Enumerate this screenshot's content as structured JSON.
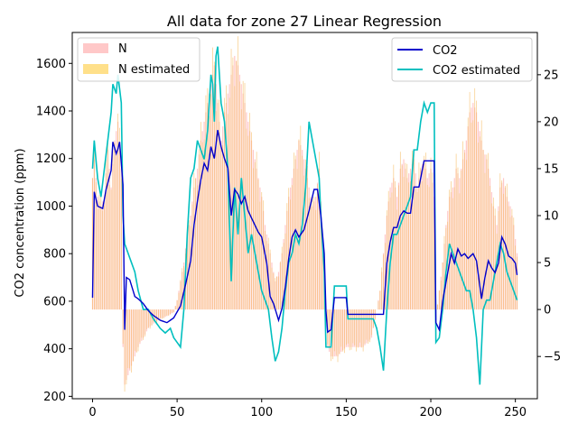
{
  "chart_data": {
    "type": "line",
    "title": "All data for zone 27 Linear Regression",
    "xlabel": "",
    "ylabel": "CO2 concentration (ppm)",
    "y2label": "",
    "xlim": [
      -12,
      263
    ],
    "ylim": [
      190,
      1730
    ],
    "y2lim": [
      -9.5,
      29.5
    ],
    "x_ticks": [
      0,
      50,
      100,
      150,
      200,
      250
    ],
    "y_ticks": [
      200,
      400,
      600,
      800,
      1000,
      1200,
      1400,
      1600
    ],
    "y2_ticks": [
      -5,
      0,
      5,
      10,
      15,
      20,
      25
    ],
    "grid": false,
    "legend_left": {
      "placement": "upper left",
      "entries": [
        {
          "label": "N",
          "color": "#ffc8c8"
        },
        {
          "label": "N estimated",
          "color": "#ffe08a"
        }
      ]
    },
    "legend_right": {
      "placement": "upper right",
      "entries": [
        {
          "label": "CO2",
          "color": "#0000cc"
        },
        {
          "label": "CO2 estimated",
          "color": "#00bfbf"
        }
      ]
    },
    "co2_keypoints": [
      [
        0,
        615
      ],
      [
        1,
        1060
      ],
      [
        3,
        1000
      ],
      [
        6,
        990
      ],
      [
        8,
        1070
      ],
      [
        11,
        1150
      ],
      [
        12,
        1270
      ],
      [
        14,
        1220
      ],
      [
        15,
        1240
      ],
      [
        16,
        1270
      ],
      [
        18,
        1090
      ],
      [
        19,
        480
      ],
      [
        20,
        700
      ],
      [
        22,
        690
      ],
      [
        25,
        620
      ],
      [
        27,
        610
      ],
      [
        30,
        590
      ],
      [
        33,
        560
      ],
      [
        36,
        540
      ],
      [
        40,
        520
      ],
      [
        44,
        510
      ],
      [
        48,
        530
      ],
      [
        52,
        580
      ],
      [
        55,
        670
      ],
      [
        58,
        770
      ],
      [
        60,
        920
      ],
      [
        62,
        1020
      ],
      [
        64,
        1110
      ],
      [
        66,
        1180
      ],
      [
        68,
        1150
      ],
      [
        70,
        1250
      ],
      [
        72,
        1200
      ],
      [
        74,
        1320
      ],
      [
        76,
        1250
      ],
      [
        78,
        1200
      ],
      [
        80,
        1160
      ],
      [
        82,
        960
      ],
      [
        84,
        1070
      ],
      [
        86,
        1050
      ],
      [
        88,
        1010
      ],
      [
        90,
        1040
      ],
      [
        92,
        980
      ],
      [
        94,
        950
      ],
      [
        96,
        920
      ],
      [
        98,
        890
      ],
      [
        100,
        870
      ],
      [
        103,
        760
      ],
      [
        105,
        620
      ],
      [
        107,
        590
      ],
      [
        110,
        520
      ],
      [
        112,
        570
      ],
      [
        114,
        660
      ],
      [
        116,
        780
      ],
      [
        118,
        870
      ],
      [
        120,
        900
      ],
      [
        122,
        870
      ],
      [
        125,
        900
      ],
      [
        128,
        980
      ],
      [
        131,
        1070
      ],
      [
        133,
        1070
      ],
      [
        135,
        960
      ],
      [
        137,
        800
      ],
      [
        138,
        560
      ],
      [
        139,
        470
      ],
      [
        141,
        480
      ],
      [
        143,
        615
      ],
      [
        150,
        615
      ],
      [
        151,
        545
      ],
      [
        155,
        545
      ],
      [
        160,
        545
      ],
      [
        165,
        545
      ],
      [
        170,
        545
      ],
      [
        172,
        545
      ],
      [
        174,
        760
      ],
      [
        176,
        850
      ],
      [
        178,
        910
      ],
      [
        180,
        910
      ],
      [
        182,
        960
      ],
      [
        184,
        980
      ],
      [
        186,
        970
      ],
      [
        188,
        970
      ],
      [
        190,
        1080
      ],
      [
        193,
        1080
      ],
      [
        196,
        1190
      ],
      [
        199,
        1190
      ],
      [
        202,
        1190
      ],
      [
        203,
        510
      ],
      [
        205,
        480
      ],
      [
        207,
        600
      ],
      [
        209,
        680
      ],
      [
        212,
        800
      ],
      [
        214,
        760
      ],
      [
        216,
        820
      ],
      [
        218,
        790
      ],
      [
        220,
        800
      ],
      [
        222,
        780
      ],
      [
        225,
        800
      ],
      [
        227,
        770
      ],
      [
        230,
        610
      ],
      [
        232,
        700
      ],
      [
        234,
        770
      ],
      [
        236,
        740
      ],
      [
        238,
        720
      ],
      [
        240,
        760
      ],
      [
        242,
        870
      ],
      [
        244,
        840
      ],
      [
        246,
        790
      ],
      [
        248,
        780
      ],
      [
        250,
        760
      ],
      [
        251,
        710
      ]
    ],
    "co2_estimated_keypoints": [
      [
        0,
        15
      ],
      [
        1,
        18
      ],
      [
        3,
        14
      ],
      [
        5,
        12
      ],
      [
        7,
        15
      ],
      [
        9,
        18
      ],
      [
        11,
        21
      ],
      [
        12,
        24
      ],
      [
        14,
        23
      ],
      [
        15,
        25
      ],
      [
        17,
        22
      ],
      [
        18,
        10
      ],
      [
        19,
        7
      ],
      [
        21,
        6
      ],
      [
        23,
        5
      ],
      [
        25,
        4
      ],
      [
        27,
        2
      ],
      [
        30,
        0
      ],
      [
        33,
        0
      ],
      [
        36,
        -1
      ],
      [
        40,
        -2
      ],
      [
        43,
        -2.5
      ],
      [
        46,
        -2
      ],
      [
        48,
        -3
      ],
      [
        50,
        -3.5
      ],
      [
        52,
        -4
      ],
      [
        54,
        0
      ],
      [
        56,
        8
      ],
      [
        58,
        14
      ],
      [
        60,
        15
      ],
      [
        62,
        18
      ],
      [
        64,
        17
      ],
      [
        66,
        16
      ],
      [
        68,
        19
      ],
      [
        70,
        25
      ],
      [
        71,
        24
      ],
      [
        72,
        20
      ],
      [
        73,
        27
      ],
      [
        74,
        28
      ],
      [
        76,
        22
      ],
      [
        78,
        20
      ],
      [
        80,
        15
      ],
      [
        82,
        3
      ],
      [
        84,
        13
      ],
      [
        86,
        8
      ],
      [
        88,
        14
      ],
      [
        90,
        10
      ],
      [
        92,
        6
      ],
      [
        94,
        8
      ],
      [
        96,
        6
      ],
      [
        98,
        4
      ],
      [
        100,
        2
      ],
      [
        102,
        1
      ],
      [
        104,
        0
      ],
      [
        106,
        -3
      ],
      [
        108,
        -5.5
      ],
      [
        110,
        -4.5
      ],
      [
        112,
        -2
      ],
      [
        114,
        2
      ],
      [
        116,
        5
      ],
      [
        118,
        6
      ],
      [
        120,
        8
      ],
      [
        122,
        7
      ],
      [
        124,
        9
      ],
      [
        126,
        13
      ],
      [
        128,
        20
      ],
      [
        130,
        18
      ],
      [
        132,
        16
      ],
      [
        134,
        14
      ],
      [
        135,
        10
      ],
      [
        137,
        4
      ],
      [
        138,
        -4
      ],
      [
        139,
        -4
      ],
      [
        141,
        -4
      ],
      [
        143,
        2.5
      ],
      [
        150,
        2.5
      ],
      [
        151,
        -1
      ],
      [
        160,
        -1
      ],
      [
        166,
        -1
      ],
      [
        168,
        -2
      ],
      [
        170,
        -4
      ],
      [
        172,
        -6.5
      ],
      [
        174,
        0
      ],
      [
        176,
        5
      ],
      [
        178,
        8
      ],
      [
        180,
        8
      ],
      [
        182,
        9
      ],
      [
        184,
        10
      ],
      [
        186,
        11
      ],
      [
        188,
        12
      ],
      [
        190,
        17
      ],
      [
        192,
        17
      ],
      [
        194,
        20
      ],
      [
        196,
        22
      ],
      [
        198,
        21
      ],
      [
        200,
        22
      ],
      [
        202,
        22
      ],
      [
        203,
        -3.5
      ],
      [
        205,
        -3
      ],
      [
        207,
        0
      ],
      [
        209,
        4
      ],
      [
        211,
        7
      ],
      [
        213,
        6
      ],
      [
        215,
        5
      ],
      [
        217,
        4
      ],
      [
        219,
        3
      ],
      [
        221,
        2
      ],
      [
        223,
        2
      ],
      [
        225,
        0
      ],
      [
        227,
        -3
      ],
      [
        229,
        -8
      ],
      [
        231,
        0
      ],
      [
        233,
        1
      ],
      [
        235,
        1
      ],
      [
        237,
        3
      ],
      [
        239,
        5
      ],
      [
        241,
        7
      ],
      [
        243,
        6
      ],
      [
        245,
        4
      ],
      [
        247,
        3
      ],
      [
        249,
        2
      ],
      [
        251,
        1
      ]
    ],
    "n_keypoints": [
      [
        0,
        14
      ],
      [
        1,
        16
      ],
      [
        3,
        12
      ],
      [
        5,
        11
      ],
      [
        7,
        12
      ],
      [
        9,
        17
      ],
      [
        11,
        13
      ],
      [
        13,
        18
      ],
      [
        15,
        20
      ],
      [
        17,
        15
      ],
      [
        18,
        -4
      ],
      [
        19,
        -8
      ],
      [
        21,
        -7
      ],
      [
        23,
        -6
      ],
      [
        25,
        -5
      ],
      [
        27,
        -4
      ],
      [
        30,
        -3
      ],
      [
        33,
        -2
      ],
      [
        36,
        -1.5
      ],
      [
        40,
        -1
      ],
      [
        43,
        -0.8
      ],
      [
        46,
        -0.5
      ],
      [
        48,
        -0.3
      ],
      [
        50,
        1
      ],
      [
        52,
        3
      ],
      [
        54,
        5
      ],
      [
        56,
        8
      ],
      [
        58,
        10
      ],
      [
        60,
        13
      ],
      [
        62,
        15
      ],
      [
        64,
        18
      ],
      [
        66,
        20
      ],
      [
        68,
        22
      ],
      [
        70,
        24
      ],
      [
        72,
        26
      ],
      [
        74,
        22
      ],
      [
        76,
        18
      ],
      [
        78,
        21
      ],
      [
        80,
        23
      ],
      [
        82,
        25
      ],
      [
        84,
        27
      ],
      [
        86,
        26
      ],
      [
        88,
        24
      ],
      [
        90,
        22
      ],
      [
        92,
        20
      ],
      [
        94,
        18
      ],
      [
        96,
        16
      ],
      [
        98,
        14
      ],
      [
        100,
        12
      ],
      [
        102,
        9
      ],
      [
        104,
        7
      ],
      [
        106,
        5
      ],
      [
        108,
        3
      ],
      [
        110,
        4
      ],
      [
        112,
        6
      ],
      [
        114,
        9
      ],
      [
        116,
        12
      ],
      [
        118,
        14
      ],
      [
        120,
        16
      ],
      [
        122,
        18
      ],
      [
        124,
        17
      ],
      [
        126,
        15
      ],
      [
        128,
        13
      ],
      [
        130,
        11
      ],
      [
        132,
        12
      ],
      [
        134,
        15
      ],
      [
        136,
        8
      ],
      [
        138,
        -1
      ],
      [
        139,
        -4
      ],
      [
        141,
        -5
      ],
      [
        143,
        -5
      ],
      [
        145,
        -5
      ],
      [
        147,
        -4.5
      ],
      [
        150,
        -4
      ],
      [
        155,
        -4
      ],
      [
        160,
        -4
      ],
      [
        165,
        -3
      ],
      [
        170,
        2
      ],
      [
        172,
        6
      ],
      [
        174,
        10
      ],
      [
        176,
        13
      ],
      [
        178,
        14
      ],
      [
        180,
        12
      ],
      [
        182,
        15
      ],
      [
        184,
        16
      ],
      [
        186,
        14
      ],
      [
        188,
        15
      ],
      [
        190,
        16
      ],
      [
        192,
        13
      ],
      [
        194,
        15
      ],
      [
        196,
        16
      ],
      [
        198,
        14
      ],
      [
        200,
        15
      ],
      [
        202,
        12
      ],
      [
        203,
        -1
      ],
      [
        205,
        2
      ],
      [
        207,
        5
      ],
      [
        209,
        9
      ],
      [
        211,
        12
      ],
      [
        213,
        13
      ],
      [
        215,
        15
      ],
      [
        217,
        14
      ],
      [
        219,
        16
      ],
      [
        221,
        18
      ],
      [
        223,
        21
      ],
      [
        225,
        22
      ],
      [
        227,
        21
      ],
      [
        229,
        19
      ],
      [
        231,
        17
      ],
      [
        233,
        16
      ],
      [
        235,
        14
      ],
      [
        237,
        11
      ],
      [
        239,
        9
      ],
      [
        241,
        13
      ],
      [
        243,
        14
      ],
      [
        245,
        12
      ],
      [
        247,
        11
      ],
      [
        249,
        9
      ],
      [
        251,
        6
      ]
    ]
  }
}
